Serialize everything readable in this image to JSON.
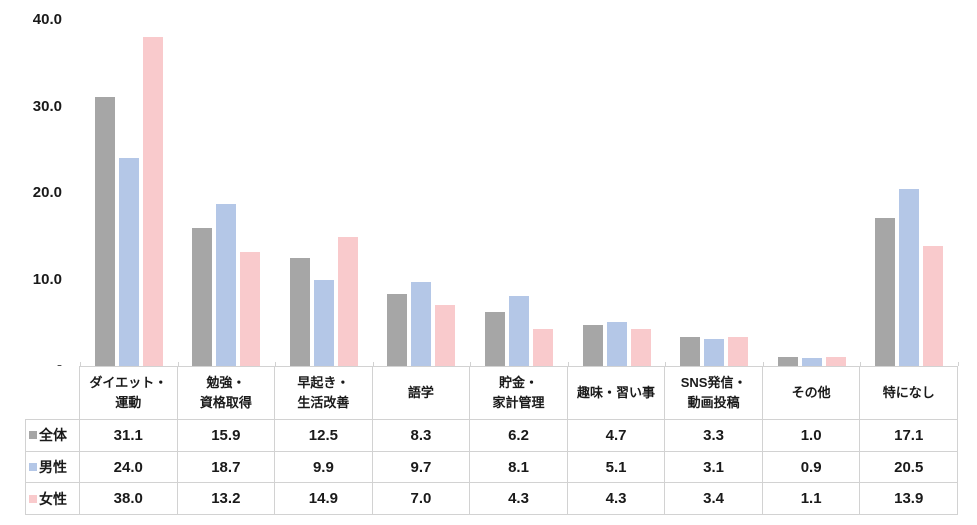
{
  "chart_data": {
    "type": "bar",
    "title": "",
    "xlabel": "",
    "ylabel": "",
    "ylim": [
      0,
      40
    ],
    "grid": false,
    "legend_position": "data-table-left-column",
    "value_format": "one-decimal",
    "yticks": [
      {
        "value": 40,
        "label": "40.0"
      },
      {
        "value": 30,
        "label": "30.0"
      },
      {
        "value": 20,
        "label": "20.0"
      },
      {
        "value": 10,
        "label": "10.0"
      },
      {
        "value": 0,
        "label": "-"
      }
    ],
    "categories": [
      "ダイエット・\n運動",
      "勉強・\n資格取得",
      "早起き・\n生活改善",
      "語学",
      "貯金・\n家計管理",
      "趣味・習い事",
      "SNS発信・\n動画投稿",
      "その他",
      "特になし"
    ],
    "series": [
      {
        "name": "全体",
        "color": "#A6A6A6",
        "values": [
          31.1,
          15.9,
          12.5,
          8.3,
          6.2,
          4.7,
          3.3,
          1.0,
          17.1
        ]
      },
      {
        "name": "男性",
        "color": "#B4C7E7",
        "values": [
          24.0,
          18.7,
          9.9,
          9.7,
          8.1,
          5.1,
          3.1,
          0.9,
          20.5
        ]
      },
      {
        "name": "女性",
        "color": "#F9CACC",
        "values": [
          38.0,
          13.2,
          14.9,
          7.0,
          4.3,
          4.3,
          3.4,
          1.1,
          13.9
        ]
      }
    ]
  },
  "colors": {
    "grid_border": "#D2D2D2",
    "text": "#1A1A1A"
  }
}
